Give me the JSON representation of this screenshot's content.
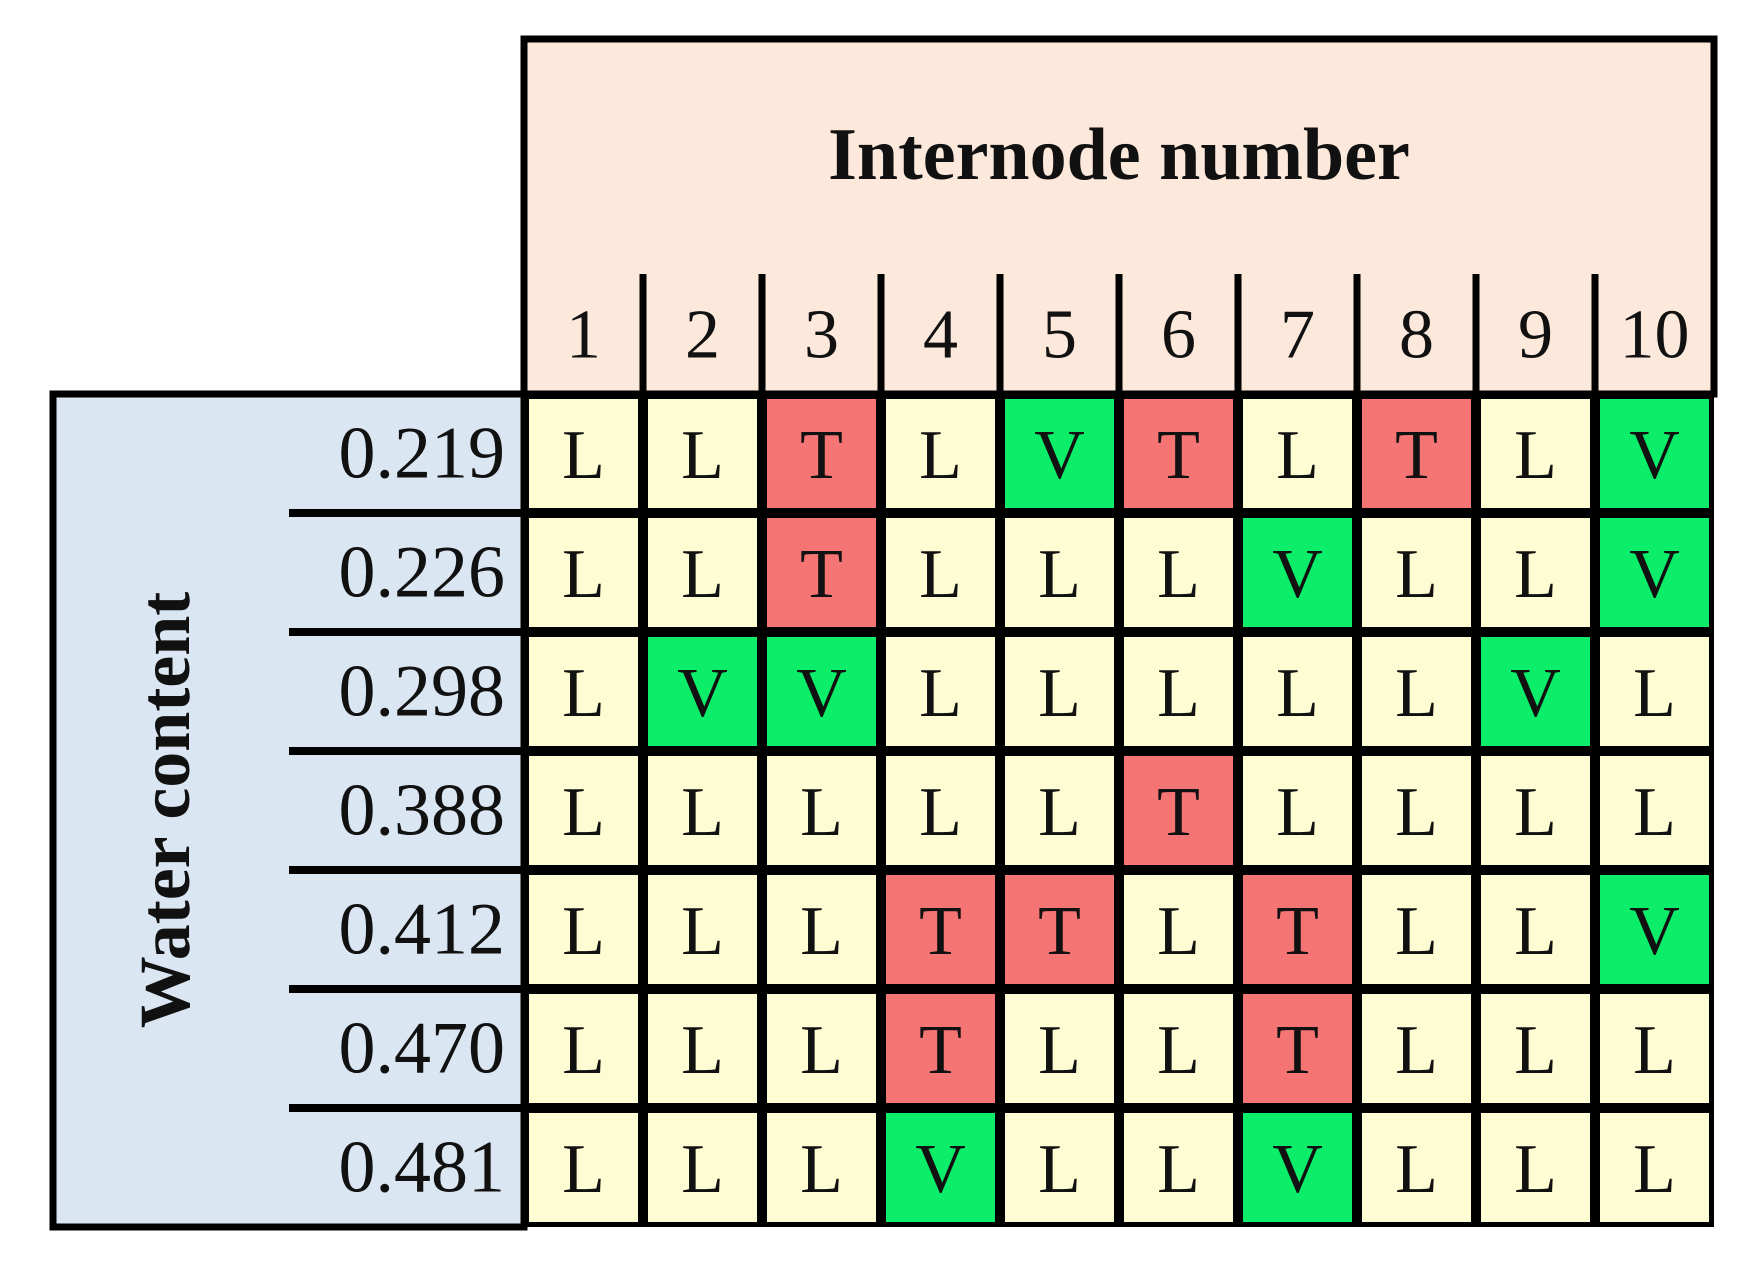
{
  "header": {
    "title": "Internode number",
    "columns": [
      "1",
      "2",
      "3",
      "4",
      "5",
      "6",
      "7",
      "8",
      "9",
      "10"
    ]
  },
  "row_header": "Water content",
  "cell_colors": {
    "L": "#fefcd2",
    "T": "#f57575",
    "V": "#0ced6a"
  },
  "rows": [
    {
      "label": "0.219",
      "cells": [
        "L",
        "L",
        "T",
        "L",
        "V",
        "T",
        "L",
        "T",
        "L",
        "V"
      ]
    },
    {
      "label": "0.226",
      "cells": [
        "L",
        "L",
        "T",
        "L",
        "L",
        "L",
        "V",
        "L",
        "L",
        "V"
      ]
    },
    {
      "label": "0.298",
      "cells": [
        "L",
        "V",
        "V",
        "L",
        "L",
        "L",
        "L",
        "L",
        "V",
        "L"
      ]
    },
    {
      "label": "0.388",
      "cells": [
        "L",
        "L",
        "L",
        "L",
        "L",
        "T",
        "L",
        "L",
        "L",
        "L"
      ]
    },
    {
      "label": "0.412",
      "cells": [
        "L",
        "L",
        "L",
        "T",
        "T",
        "L",
        "T",
        "L",
        "L",
        "V"
      ]
    },
    {
      "label": "0.470",
      "cells": [
        "L",
        "L",
        "L",
        "T",
        "L",
        "L",
        "T",
        "L",
        "L",
        "L"
      ]
    },
    {
      "label": "0.481",
      "cells": [
        "L",
        "L",
        "L",
        "V",
        "L",
        "L",
        "V",
        "L",
        "L",
        "L"
      ]
    }
  ]
}
